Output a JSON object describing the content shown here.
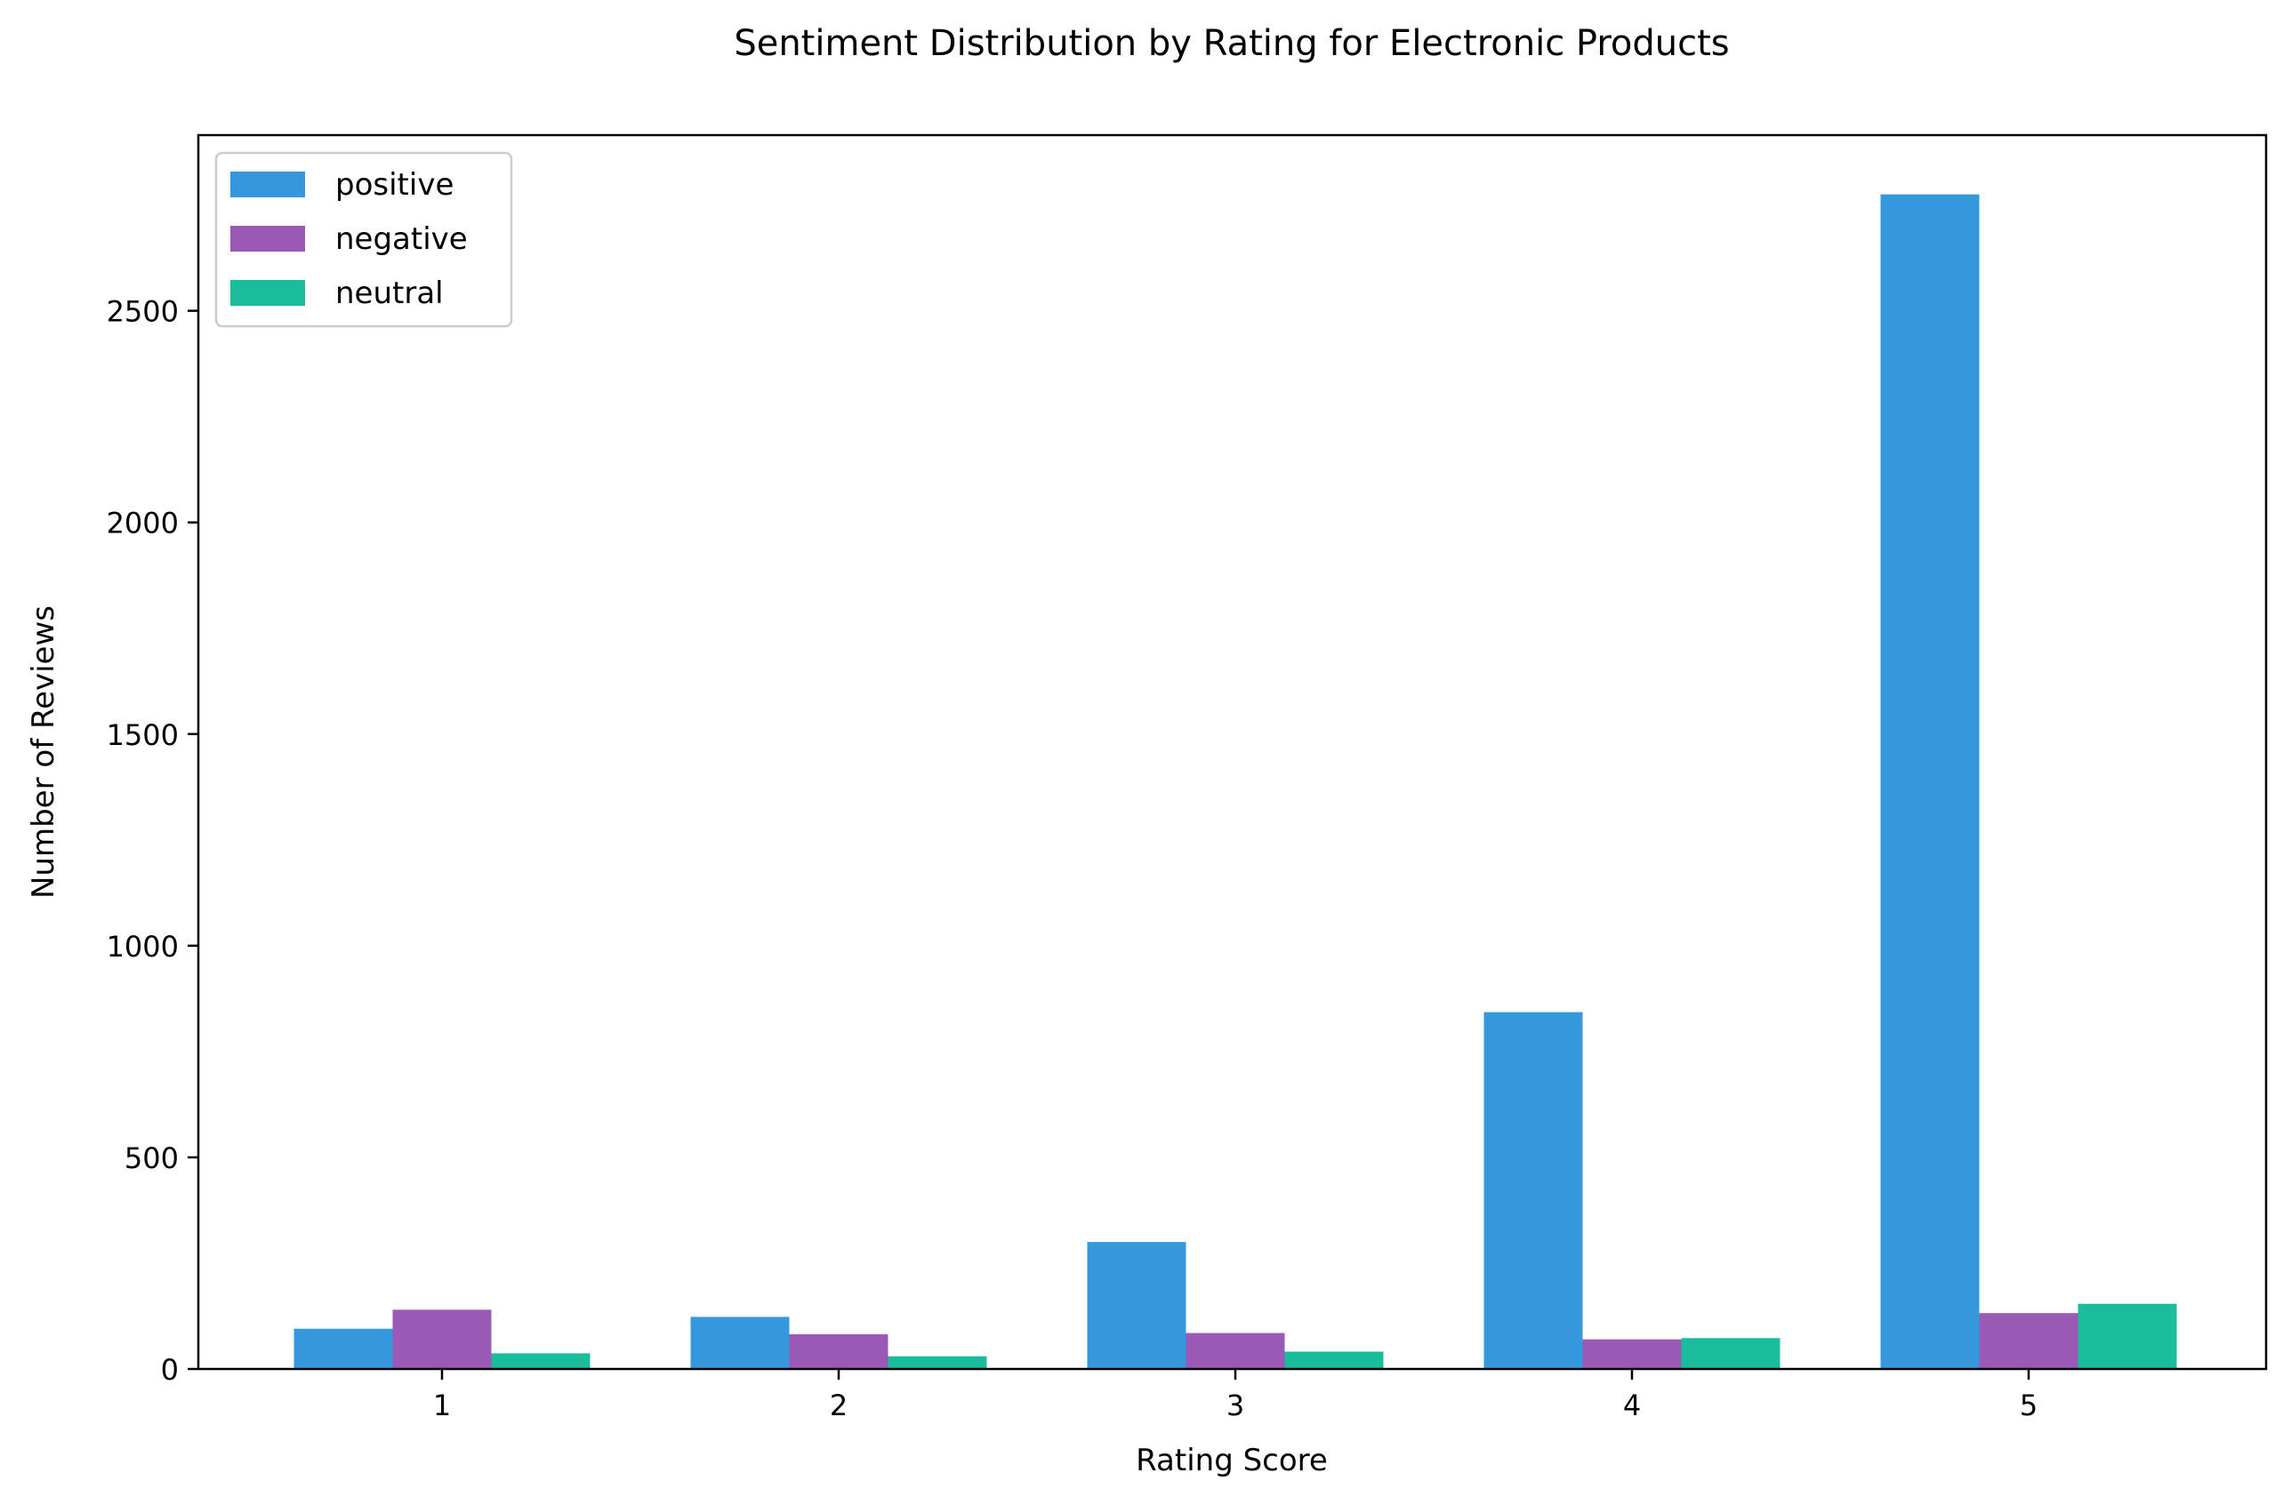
{
  "chart_data": {
    "type": "bar",
    "title": "Sentiment Distribution by Rating for Electronic Products",
    "xlabel": "Rating Score",
    "ylabel": "Number of Reviews",
    "categories": [
      "1",
      "2",
      "3",
      "4",
      "5"
    ],
    "series": [
      {
        "name": "positive",
        "color": "#3598dc",
        "values": [
          95,
          123,
          300,
          843,
          2775
        ]
      },
      {
        "name": "negative",
        "color": "#9b59b6",
        "values": [
          140,
          82,
          85,
          70,
          132
        ]
      },
      {
        "name": "neutral",
        "color": "#1abc9c",
        "values": [
          37,
          30,
          41,
          73,
          154
        ]
      }
    ],
    "ylim": [
      0,
      2915
    ],
    "yticks": [
      0,
      500,
      1000,
      1500,
      2000,
      2500
    ],
    "grid": false,
    "legend_position": "top-left"
  }
}
